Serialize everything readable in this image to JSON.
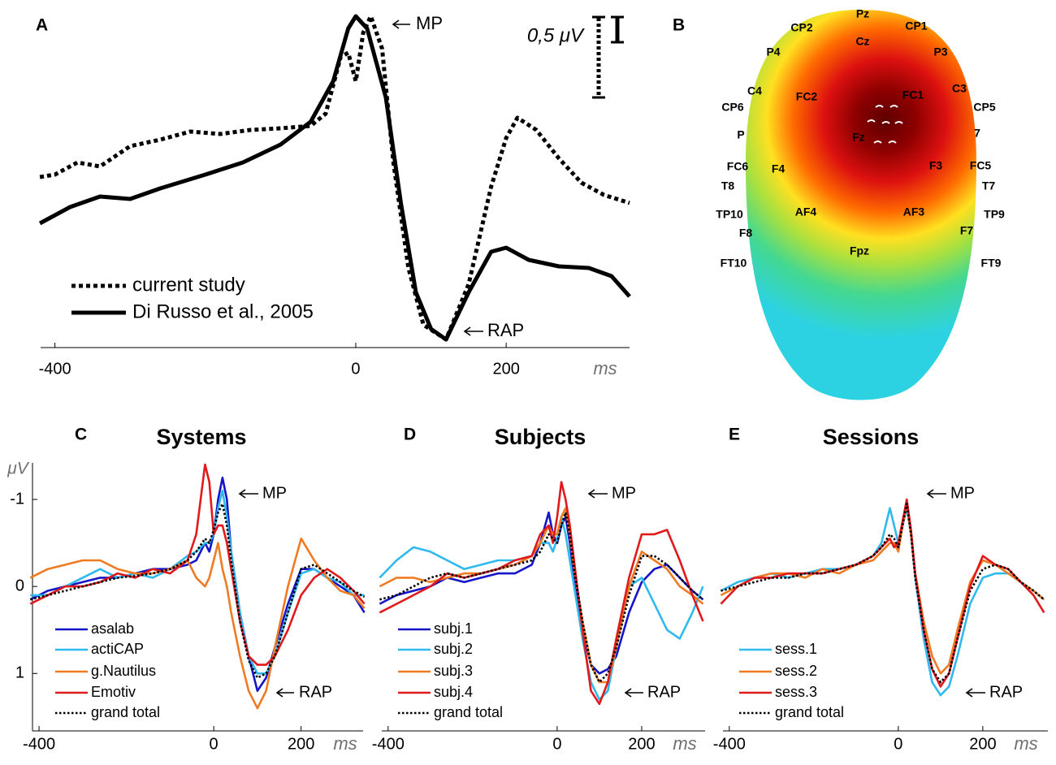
{
  "chart_data": [
    {
      "type": "line",
      "panel": "A",
      "xlim": [
        -419,
        364
      ],
      "xticks": [
        -400,
        0,
        200
      ],
      "x_label": "ms",
      "ylim": [
        -1.025,
        1.025
      ],
      "invert_y": true,
      "scale_label": "0,5 μV",
      "annotations": [
        "MP",
        "RAP"
      ],
      "series": [
        {
          "name": "current study",
          "color": "#000000",
          "linestyle": "dotted",
          "x": [
            -420,
            -400,
            -370,
            -340,
            -300,
            -260,
            -220,
            -180,
            -140,
            -100,
            -60,
            -40,
            -20,
            -10,
            0,
            10,
            20,
            35,
            50,
            70,
            90,
            120,
            150,
            180,
            200,
            215,
            240,
            270,
            300,
            330,
            364
          ],
          "values": [
            -0.01,
            -0.025,
            -0.1,
            -0.075,
            -0.2,
            -0.24,
            -0.29,
            -0.275,
            -0.3,
            -0.31,
            -0.325,
            -0.4,
            -0.75,
            -0.775,
            -0.6,
            -0.9,
            -1.0,
            -0.8,
            -0.1,
            0.55,
            0.9,
            0.99,
            0.65,
            0.05,
            -0.25,
            -0.375,
            -0.3,
            -0.125,
            0.025,
            0.1,
            0.15
          ]
        },
        {
          "name": "Di Russo et al., 2005",
          "color": "#000000",
          "linestyle": "solid",
          "x": [
            -420,
            -380,
            -340,
            -300,
            -260,
            -200,
            -150,
            -100,
            -60,
            -30,
            -10,
            0,
            15,
            40,
            60,
            80,
            100,
            120,
            150,
            180,
            200,
            230,
            270,
            310,
            340,
            364
          ],
          "values": [
            0.275,
            0.175,
            0.11,
            0.125,
            0.06,
            -0.025,
            -0.1,
            -0.21,
            -0.35,
            -0.6,
            -0.925,
            -1.0,
            -0.925,
            -0.5,
            0.15,
            0.7,
            0.925,
            0.99,
            0.7,
            0.45,
            0.425,
            0.5,
            0.54,
            0.55,
            0.6,
            0.725
          ]
        }
      ]
    },
    {
      "type": "topomap",
      "panel": "B",
      "electrodes": [
        "Pz",
        "CP2",
        "CP1",
        "Cz",
        "P4",
        "P3",
        "C4",
        "FC2",
        "FC1",
        "C3",
        "CP6",
        "CP5",
        "P",
        "7",
        "Fz",
        "FC6",
        "F4",
        "F3",
        "FC5",
        "T8",
        "T7",
        "TP10",
        "AF4",
        "AF3",
        "TP9",
        "F8",
        "F7",
        "FT10",
        "Fpz",
        "FT9"
      ]
    },
    {
      "type": "line",
      "panel": "C",
      "title": "Systems",
      "y_label": "μV",
      "x_label": "ms",
      "xlim": [
        -415,
        342
      ],
      "xticks": [
        -400,
        0,
        200
      ],
      "ylim": [
        -1.42,
        1.66
      ],
      "yticks": [
        -1,
        0,
        1
      ],
      "invert_y": true,
      "annotations": [
        "MP",
        "RAP"
      ],
      "x": [
        -420,
        -380,
        -340,
        -300,
        -260,
        -220,
        -180,
        -140,
        -100,
        -60,
        -40,
        -20,
        -10,
        0,
        10,
        20,
        30,
        40,
        60,
        80,
        100,
        120,
        140,
        170,
        200,
        230,
        260,
        290,
        320,
        345
      ],
      "series": [
        {
          "name": "asalab",
          "color": "#1414c8",
          "linestyle": "solid",
          "values": [
            0.15,
            0.05,
            0.0,
            -0.05,
            -0.1,
            -0.1,
            -0.15,
            -0.2,
            -0.2,
            -0.25,
            -0.3,
            -0.5,
            -0.4,
            -0.6,
            -1.0,
            -1.25,
            -1.0,
            -0.4,
            0.3,
            0.8,
            1.2,
            1.05,
            0.7,
            0.2,
            -0.2,
            -0.2,
            -0.1,
            0.0,
            0.1,
            0.3
          ]
        },
        {
          "name": "actiCAP",
          "color": "#2fb9ef",
          "linestyle": "solid",
          "values": [
            0.1,
            0.1,
            0.0,
            -0.1,
            -0.2,
            -0.1,
            -0.15,
            -0.1,
            -0.2,
            -0.35,
            -0.4,
            -0.5,
            -0.5,
            -0.6,
            -0.9,
            -1.1,
            -0.8,
            -0.4,
            0.3,
            0.8,
            1.0,
            1.0,
            0.8,
            0.3,
            -0.15,
            -0.2,
            -0.1,
            -0.05,
            0.1,
            0.1
          ]
        },
        {
          "name": "g.Nautilus",
          "color": "#f07a22",
          "linestyle": "solid",
          "values": [
            -0.1,
            -0.2,
            -0.25,
            -0.3,
            -0.3,
            -0.2,
            -0.15,
            -0.15,
            -0.2,
            -0.3,
            -0.1,
            0.0,
            -0.1,
            -0.3,
            -0.5,
            -0.2,
            0.0,
            0.3,
            0.8,
            1.2,
            1.4,
            1.2,
            0.7,
            0.0,
            -0.55,
            -0.3,
            -0.1,
            0.05,
            0.1,
            0.25
          ]
        },
        {
          "name": "Emotiv",
          "color": "#e0191b",
          "linestyle": "solid",
          "values": [
            0.2,
            0.1,
            0.0,
            0.0,
            -0.05,
            -0.15,
            -0.1,
            -0.2,
            -0.15,
            -0.3,
            -0.6,
            -1.4,
            -1.2,
            -0.6,
            -0.7,
            -0.7,
            -0.5,
            -0.2,
            0.4,
            0.8,
            0.9,
            0.9,
            0.8,
            0.5,
            0.1,
            -0.1,
            -0.2,
            -0.1,
            0.05,
            0.2
          ]
        },
        {
          "name": "grand total",
          "color": "#000000",
          "linestyle": "dotted",
          "values": [
            0.15,
            0.1,
            0.05,
            0.0,
            -0.05,
            -0.1,
            -0.12,
            -0.15,
            -0.2,
            -0.3,
            -0.4,
            -0.55,
            -0.5,
            -0.65,
            -0.85,
            -0.95,
            -0.7,
            -0.3,
            0.4,
            0.85,
            1.05,
            1.0,
            0.8,
            0.3,
            -0.2,
            -0.25,
            -0.15,
            -0.05,
            0.05,
            0.12
          ]
        }
      ]
    },
    {
      "type": "line",
      "panel": "D",
      "title": "Subjects",
      "x_label": "ms",
      "xlim": [
        -415,
        350
      ],
      "xticks": [
        -400,
        0,
        200
      ],
      "ylim": [
        -1.42,
        1.66
      ],
      "invert_y": true,
      "annotations": [
        "MP",
        "RAP"
      ],
      "x": [
        -420,
        -380,
        -340,
        -300,
        -260,
        -220,
        -180,
        -140,
        -100,
        -60,
        -40,
        -20,
        -10,
        0,
        10,
        20,
        30,
        40,
        60,
        80,
        100,
        120,
        140,
        170,
        200,
        230,
        260,
        290,
        320,
        345
      ],
      "series": [
        {
          "name": "subj.1",
          "color": "#1414c8",
          "linestyle": "solid",
          "values": [
            0.2,
            0.1,
            0.05,
            0.0,
            -0.1,
            -0.05,
            -0.1,
            -0.15,
            -0.15,
            -0.25,
            -0.5,
            -0.85,
            -0.6,
            -0.5,
            -0.7,
            -0.8,
            -0.5,
            -0.1,
            0.5,
            0.9,
            1.0,
            0.95,
            0.8,
            0.3,
            -0.05,
            -0.2,
            -0.25,
            -0.1,
            0.05,
            0.15
          ]
        },
        {
          "name": "subj.2",
          "color": "#2fb9ef",
          "linestyle": "solid",
          "values": [
            -0.1,
            -0.3,
            -0.45,
            -0.4,
            -0.3,
            -0.2,
            -0.25,
            -0.3,
            -0.3,
            -0.35,
            -0.5,
            -0.5,
            -0.4,
            -0.55,
            -0.8,
            -0.6,
            -0.3,
            0.0,
            0.6,
            1.1,
            1.3,
            1.2,
            0.7,
            0.0,
            -0.1,
            0.2,
            0.5,
            0.6,
            0.3,
            0.0
          ]
        },
        {
          "name": "subj.3",
          "color": "#f07a22",
          "linestyle": "solid",
          "values": [
            0.0,
            -0.1,
            -0.1,
            -0.05,
            -0.1,
            -0.15,
            -0.15,
            -0.2,
            -0.25,
            -0.35,
            -0.5,
            -0.7,
            -0.6,
            -0.6,
            -0.8,
            -0.9,
            -0.6,
            -0.2,
            0.4,
            0.9,
            1.1,
            1.1,
            0.7,
            0.0,
            -0.4,
            -0.3,
            -0.2,
            0.0,
            0.1,
            0.2
          ]
        },
        {
          "name": "subj.4",
          "color": "#e0191b",
          "linestyle": "solid",
          "values": [
            0.3,
            0.2,
            0.1,
            0.0,
            -0.15,
            -0.1,
            -0.15,
            -0.2,
            -0.3,
            -0.35,
            -0.6,
            -0.7,
            -0.5,
            -0.8,
            -1.2,
            -1.0,
            -0.7,
            -0.3,
            0.5,
            1.2,
            1.35,
            1.1,
            0.6,
            -0.1,
            -0.6,
            -0.6,
            -0.65,
            -0.3,
            0.1,
            0.4
          ]
        },
        {
          "name": "grand total",
          "color": "#000000",
          "linestyle": "dotted",
          "values": [
            0.15,
            0.1,
            0.0,
            -0.1,
            -0.15,
            -0.1,
            -0.15,
            -0.2,
            -0.25,
            -0.3,
            -0.4,
            -0.6,
            -0.55,
            -0.5,
            -0.7,
            -0.85,
            -0.6,
            -0.2,
            0.4,
            0.9,
            1.1,
            1.0,
            0.7,
            0.1,
            -0.35,
            -0.35,
            -0.25,
            -0.1,
            0.05,
            0.15
          ]
        }
      ]
    },
    {
      "type": "line",
      "panel": "E",
      "title": "Sessions",
      "x_label": "ms",
      "xlim": [
        -415,
        354
      ],
      "xticks": [
        -400,
        0,
        200
      ],
      "ylim": [
        -1.42,
        1.66
      ],
      "invert_y": true,
      "annotations": [
        "MP",
        "RAP"
      ],
      "x": [
        -420,
        -380,
        -340,
        -300,
        -260,
        -220,
        -180,
        -140,
        -100,
        -60,
        -40,
        -20,
        -10,
        0,
        10,
        20,
        30,
        40,
        60,
        80,
        100,
        120,
        140,
        170,
        200,
        230,
        260,
        290,
        320,
        345
      ],
      "series": [
        {
          "name": "sess.1",
          "color": "#2fb9ef",
          "linestyle": "solid",
          "values": [
            0.05,
            -0.05,
            -0.1,
            -0.15,
            -0.1,
            -0.15,
            -0.2,
            -0.2,
            -0.25,
            -0.35,
            -0.5,
            -0.9,
            -0.7,
            -0.5,
            -0.7,
            -0.9,
            -0.6,
            -0.1,
            0.6,
            1.1,
            1.25,
            1.15,
            0.8,
            0.2,
            -0.1,
            -0.15,
            -0.15,
            -0.05,
            0.05,
            0.15
          ]
        },
        {
          "name": "sess.2",
          "color": "#f07a22",
          "linestyle": "solid",
          "values": [
            0.1,
            0.0,
            -0.1,
            -0.15,
            -0.15,
            -0.1,
            -0.2,
            -0.15,
            -0.25,
            -0.3,
            -0.4,
            -0.5,
            -0.5,
            -0.4,
            -0.7,
            -0.95,
            -0.6,
            -0.15,
            0.4,
            0.8,
            1.0,
            0.9,
            0.5,
            -0.05,
            -0.3,
            -0.25,
            -0.15,
            -0.05,
            0.05,
            0.15
          ]
        },
        {
          "name": "sess.3",
          "color": "#e0191b",
          "linestyle": "solid",
          "values": [
            0.2,
            0.0,
            -0.1,
            -0.1,
            -0.15,
            -0.15,
            -0.15,
            -0.2,
            -0.25,
            -0.35,
            -0.45,
            -0.55,
            -0.45,
            -0.5,
            -0.75,
            -1.0,
            -0.65,
            -0.15,
            0.5,
            0.95,
            1.15,
            1.0,
            0.6,
            0.0,
            -0.35,
            -0.25,
            -0.2,
            -0.05,
            0.1,
            0.3
          ]
        },
        {
          "name": "grand total",
          "color": "#000000",
          "linestyle": "dotted",
          "values": [
            0.05,
            0.0,
            -0.05,
            -0.1,
            -0.1,
            -0.15,
            -0.15,
            -0.2,
            -0.25,
            -0.35,
            -0.45,
            -0.6,
            -0.55,
            -0.45,
            -0.7,
            -0.95,
            -0.6,
            -0.1,
            0.5,
            0.95,
            1.1,
            1.0,
            0.6,
            0.05,
            -0.2,
            -0.25,
            -0.2,
            -0.05,
            0.05,
            0.15
          ]
        }
      ]
    }
  ]
}
